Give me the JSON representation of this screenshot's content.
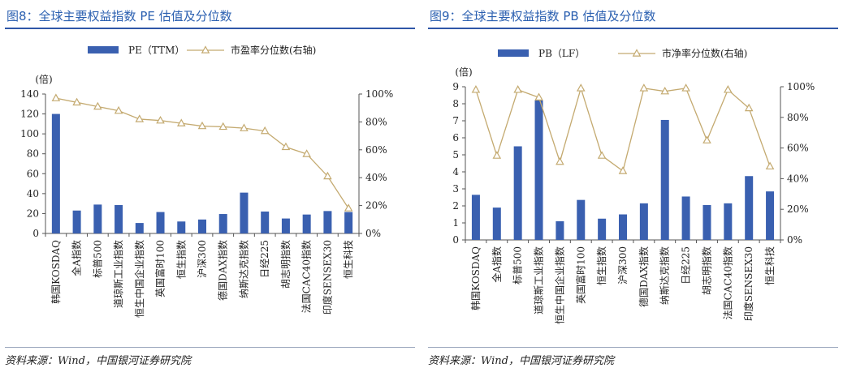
{
  "colors": {
    "bar": "#3a60b0",
    "line": "#c4aa70",
    "title": "#2a5fb0",
    "rule": "#2f57a8"
  },
  "panels": [
    {
      "fig_title": "图8：全球主要权益指数 PE 估值及分位数",
      "source": "资料来源：Wind，中国银河证券研究院"
    },
    {
      "fig_title": "图9：全球主要权益指数 PB 估值及分位数",
      "source": "资料来源：Wind，中国银河证券研究院"
    }
  ],
  "chart_data": [
    {
      "type": "bar",
      "categories": [
        "韩国KOSDAQ",
        "全A指数",
        "标普500",
        "道琼斯工业指数",
        "恒生中国企业指数",
        "英国富时100",
        "恒生指数",
        "沪深300",
        "德国DAX指数",
        "纳斯达克指数",
        "日经225",
        "胡志明指数",
        "法国CAC40指数",
        "印度SENSEX30",
        "恒生科技"
      ],
      "series": [
        {
          "name": "PE（TTM）",
          "type": "bar",
          "axis": "left",
          "values": [
            120,
            23,
            29,
            28.5,
            10.5,
            21.5,
            12,
            14,
            19.5,
            41,
            22,
            15,
            19,
            22.5,
            21.5
          ]
        },
        {
          "name": "市盈率分位数(右轴)",
          "type": "line",
          "axis": "right",
          "values": [
            97,
            94,
            91,
            88,
            82,
            81,
            79,
            77,
            76.5,
            75.5,
            73.5,
            62,
            57,
            41,
            18
          ]
        }
      ],
      "y_left": {
        "min": 0,
        "max": 140,
        "step": 20,
        "tick_labels": [
          "0",
          "20",
          "40",
          "60",
          "80",
          "100",
          "120",
          "140"
        ],
        "unit_label": "(倍)"
      },
      "y_right": {
        "min": 0,
        "max": 100,
        "step": 20,
        "tick_labels": [
          "0%",
          "20%",
          "40%",
          "60%",
          "80%",
          "100%"
        ]
      },
      "legend": "top-center",
      "grid": false
    },
    {
      "type": "bar",
      "categories": [
        "韩国KOSDAQ",
        "全A指数",
        "标普500",
        "道琼斯工业指数",
        "恒生中国企业指数",
        "英国富时100",
        "恒生指数",
        "沪深300",
        "德国DAX指数",
        "纳斯达克指数",
        "日经225",
        "胡志明指数",
        "法国CAC40指数",
        "印度SENSEX30",
        "恒生科技"
      ],
      "series": [
        {
          "name": "PB（LF）",
          "type": "bar",
          "axis": "left",
          "values": [
            2.65,
            1.9,
            5.5,
            8.2,
            1.1,
            2.35,
            1.25,
            1.5,
            2.15,
            7.05,
            2.55,
            2.05,
            2.15,
            3.75,
            2.85
          ]
        },
        {
          "name": "市净率分位数(右轴)",
          "type": "line",
          "axis": "right",
          "values": [
            98,
            55,
            98,
            93,
            51,
            99,
            55,
            45,
            99,
            97,
            99,
            65,
            98,
            86,
            48
          ]
        }
      ],
      "y_left": {
        "min": 0,
        "max": 9,
        "step": 1,
        "tick_labels": [
          "0",
          "1",
          "2",
          "3",
          "4",
          "5",
          "6",
          "7",
          "8",
          "9"
        ],
        "unit_label": "(倍)"
      },
      "y_right": {
        "min": 0,
        "max": 100,
        "step": 20,
        "tick_labels": [
          "0%",
          "20%",
          "40%",
          "60%",
          "80%",
          "100%"
        ]
      },
      "legend": "top-center",
      "grid": false
    }
  ]
}
